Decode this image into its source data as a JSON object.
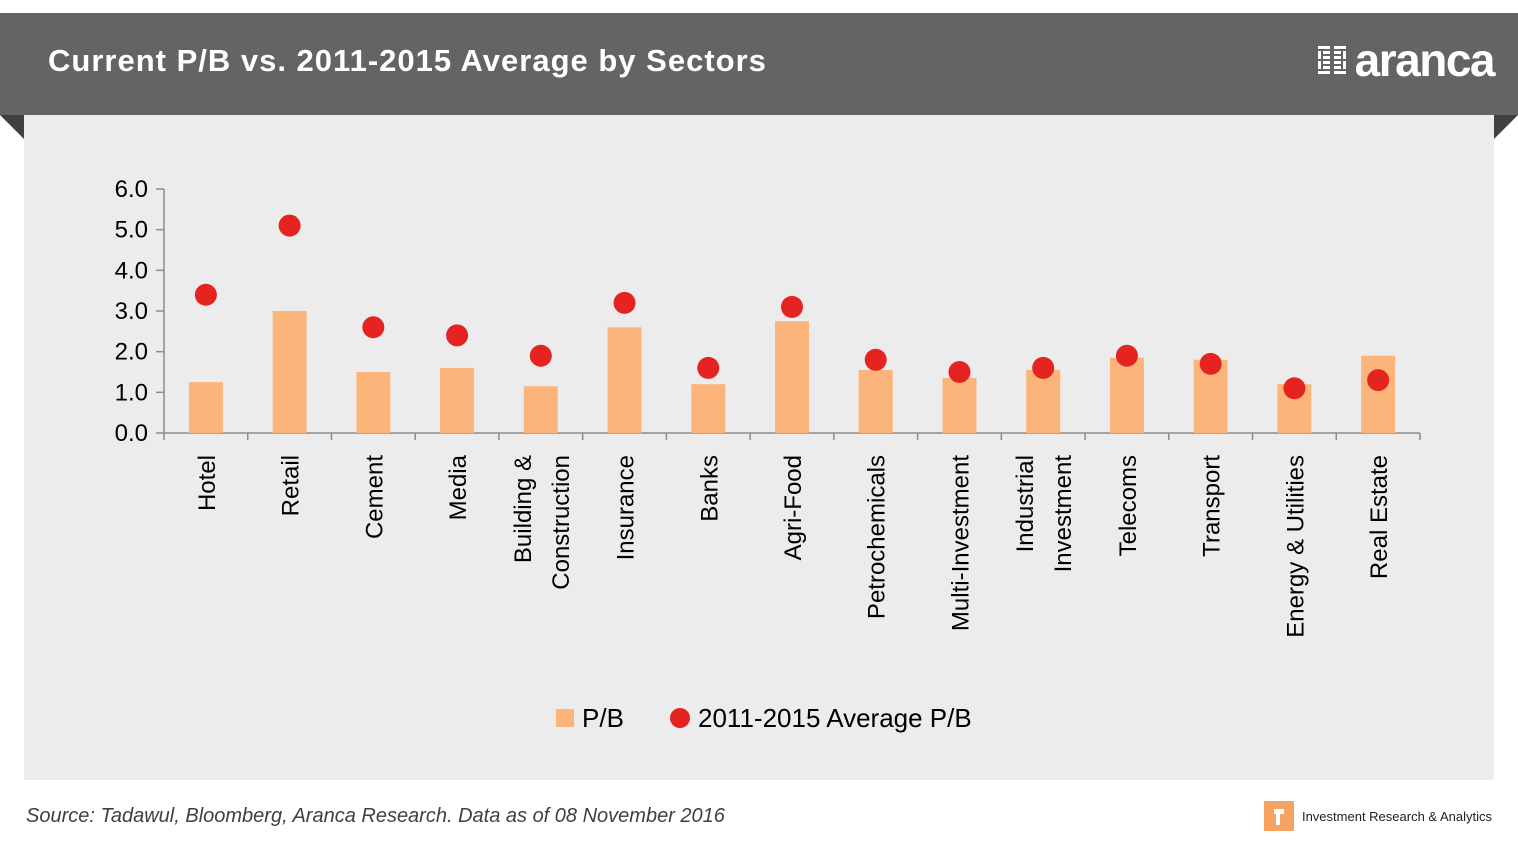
{
  "header": {
    "title": "Current P/B vs. 2011-2015 Average by Sectors",
    "brand": "aranca"
  },
  "footer": {
    "source": "Source: Tadawul, Bloomberg, Aranca Research. Data as of 08 November 2016",
    "tagline": "Investment Research & Analytics"
  },
  "colors": {
    "header_bg": "#636466",
    "panel_bg": "#ececec",
    "bar": "#fbb57a",
    "dot": "#e52421",
    "axis": "#8c8c8c"
  },
  "chart_data": {
    "type": "bar",
    "categories": [
      [
        "Hotel"
      ],
      [
        "Retail"
      ],
      [
        "Cement"
      ],
      [
        "Media"
      ],
      [
        "Building &",
        "Construction"
      ],
      [
        "Insurance"
      ],
      [
        "Banks"
      ],
      [
        "Agri-Food"
      ],
      [
        "Petrochemicals"
      ],
      [
        "Multi-Investment"
      ],
      [
        "Industrial",
        "Investment"
      ],
      [
        "Telecoms"
      ],
      [
        "Transport"
      ],
      [
        "Energy & Utilities"
      ],
      [
        "Real Estate"
      ]
    ],
    "series": [
      {
        "name": "P/B",
        "type": "bar",
        "values": [
          1.25,
          3.0,
          1.5,
          1.6,
          1.15,
          2.6,
          1.2,
          2.75,
          1.55,
          1.35,
          1.55,
          1.85,
          1.8,
          1.2,
          1.9
        ]
      },
      {
        "name": "2011-2015 Average P/B",
        "type": "scatter",
        "values": [
          3.4,
          5.1,
          2.6,
          2.4,
          1.9,
          3.2,
          1.6,
          3.1,
          1.8,
          1.5,
          1.6,
          1.9,
          1.7,
          1.1,
          1.3
        ]
      }
    ],
    "yticks": [
      "0.0",
      "1.0",
      "2.0",
      "3.0",
      "4.0",
      "5.0",
      "6.0"
    ],
    "ylim": [
      0,
      6
    ],
    "grid": false,
    "legend": "bottom-center"
  }
}
